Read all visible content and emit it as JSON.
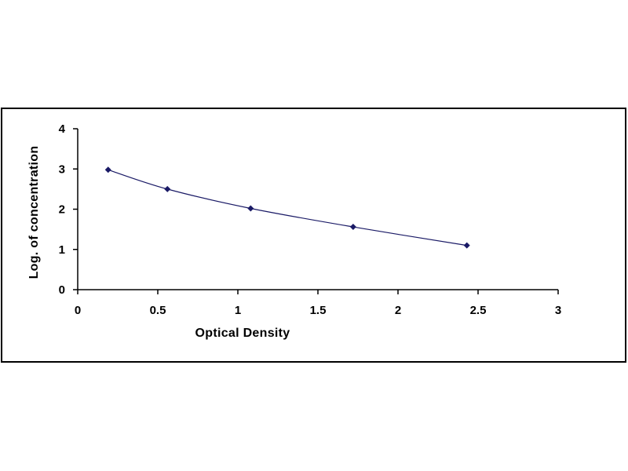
{
  "chart_data": {
    "type": "scatter",
    "title": "",
    "xlabel": "Optical Density",
    "ylabel": "Log. of concentration",
    "xlim": [
      0,
      3
    ],
    "ylim": [
      0,
      4
    ],
    "x_ticks": [
      "0",
      "0.5",
      "1",
      "1.5",
      "2",
      "2.5",
      "3"
    ],
    "y_ticks": [
      "0",
      "1",
      "2",
      "3",
      "4"
    ],
    "grid": false,
    "legend": "none",
    "series": [
      {
        "x": [
          0.19,
          0.56,
          1.08,
          1.72,
          2.43
        ],
        "y": [
          2.98,
          2.5,
          2.02,
          1.56,
          1.1
        ],
        "color": "#1a1a66",
        "marker": "diamond",
        "trendline": "smooth"
      }
    ]
  }
}
